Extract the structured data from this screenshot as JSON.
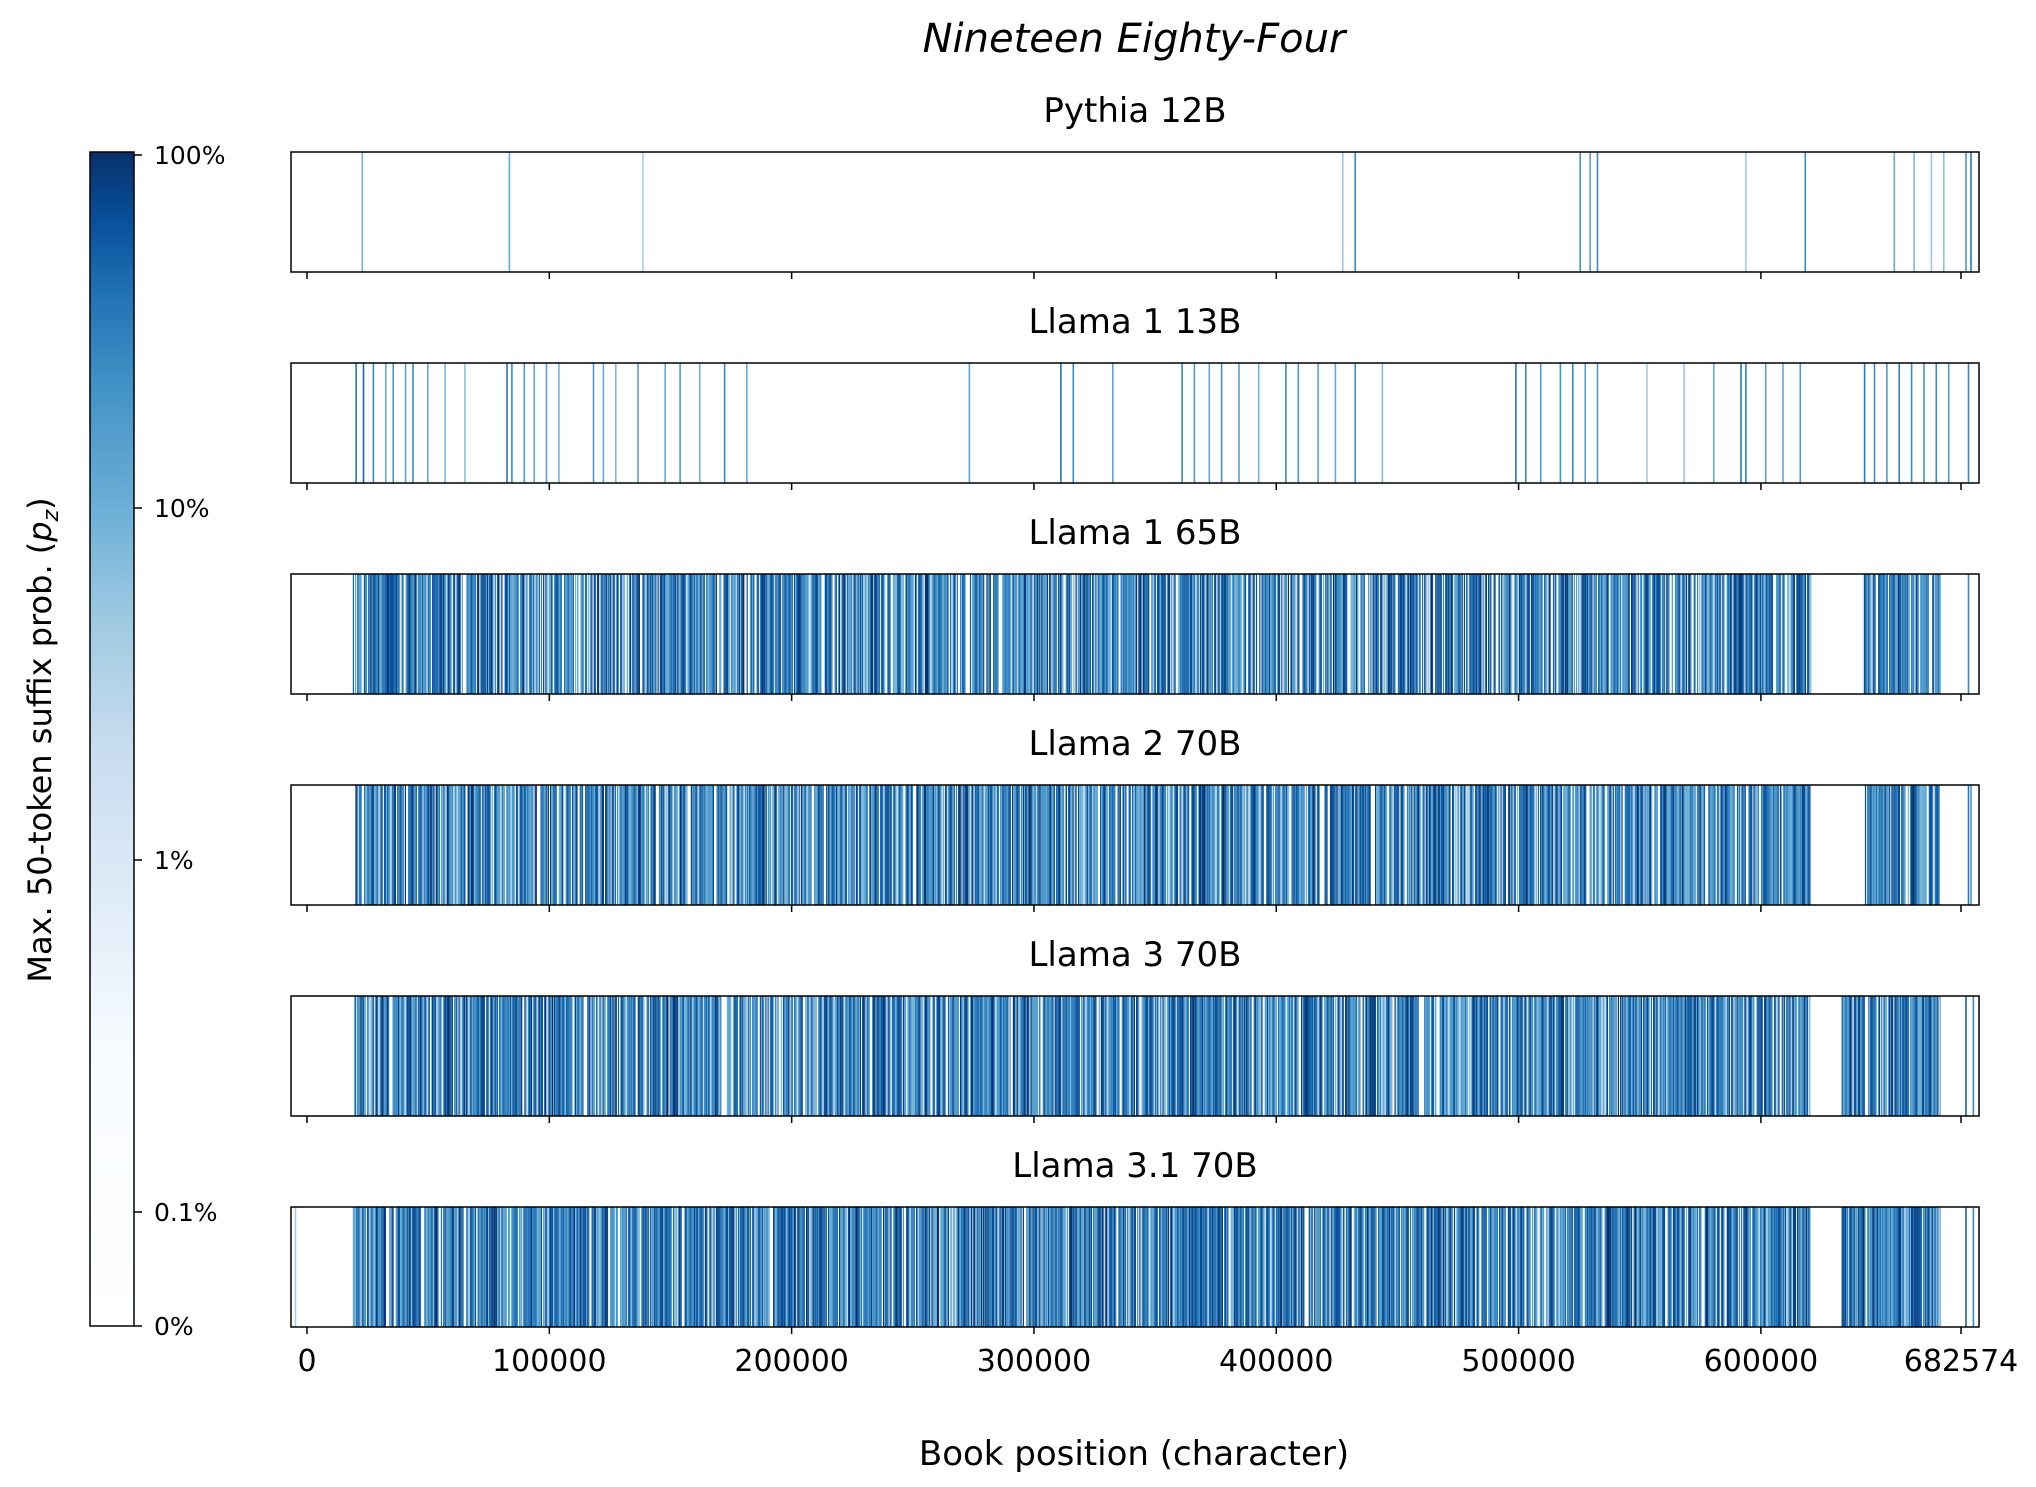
{
  "figure_title": "Nineteen Eighty-Four",
  "xlabel": "Book position (character)",
  "colorbar": {
    "label": "Max. 50-token suffix prob. (",
    "label_symbol": "p",
    "label_subscript": "z",
    "label_close": ")",
    "colormap": "Blues",
    "scale": "log",
    "ticks": [
      "0%",
      "0.1%",
      "1%",
      "10%",
      "100%"
    ]
  },
  "colors": {
    "low": "#f7fbff",
    "mid": "#6baed6",
    "high": "#08306b",
    "axis": "#000000"
  },
  "chart_data": [
    {
      "type": "heatmap",
      "title": "Pythia 12B",
      "xlim": [
        0,
        682574
      ],
      "xticks": [
        "0",
        "100000",
        "200000",
        "300000",
        "400000",
        "500000",
        "600000",
        "682574"
      ],
      "stripes": [
        [
          28500,
          0.25
        ],
        [
          88000,
          0.3
        ],
        [
          142000,
          0.03
        ],
        [
          425000,
          0.1
        ],
        [
          430000,
          0.5
        ],
        [
          521000,
          0.45
        ],
        [
          525000,
          0.35
        ],
        [
          528000,
          0.5
        ],
        [
          588000,
          0.05
        ],
        [
          612000,
          0.5
        ],
        [
          648000,
          0.3
        ],
        [
          656000,
          0.2
        ],
        [
          663000,
          0.1
        ],
        [
          668000,
          0.15
        ],
        [
          677000,
          0.4
        ],
        [
          679000,
          0.6
        ]
      ]
    },
    {
      "type": "heatmap",
      "title": "Llama 1 13B",
      "xlim": [
        0,
        682574
      ],
      "xticks": [
        "0",
        "100000",
        "200000",
        "300000",
        "400000",
        "500000",
        "600000",
        "682574"
      ],
      "stripes": [
        [
          26000,
          0.6
        ],
        [
          29000,
          0.7
        ],
        [
          33000,
          0.5
        ],
        [
          38000,
          0.3
        ],
        [
          41000,
          0.4
        ],
        [
          46000,
          0.35
        ],
        [
          49000,
          0.5
        ],
        [
          55000,
          0.3
        ],
        [
          62000,
          0.2
        ],
        [
          70000,
          0.15
        ],
        [
          87000,
          0.6
        ],
        [
          89000,
          0.5
        ],
        [
          94000,
          0.4
        ],
        [
          98000,
          0.3
        ],
        [
          103000,
          0.35
        ],
        [
          108000,
          0.25
        ],
        [
          122000,
          0.4
        ],
        [
          126000,
          0.3
        ],
        [
          131000,
          0.2
        ],
        [
          140000,
          0.35
        ],
        [
          151000,
          0.3
        ],
        [
          157000,
          0.4
        ],
        [
          165000,
          0.25
        ],
        [
          175000,
          0.5
        ],
        [
          184000,
          0.3
        ],
        [
          274000,
          0.35
        ],
        [
          311000,
          0.6
        ],
        [
          316000,
          0.5
        ],
        [
          332000,
          0.35
        ],
        [
          360000,
          0.5
        ],
        [
          365000,
          0.4
        ],
        [
          371000,
          0.3
        ],
        [
          376000,
          0.45
        ],
        [
          383000,
          0.35
        ],
        [
          391000,
          0.25
        ],
        [
          402000,
          0.5
        ],
        [
          407000,
          0.4
        ],
        [
          415000,
          0.35
        ],
        [
          422000,
          0.3
        ],
        [
          430000,
          0.45
        ],
        [
          441000,
          0.2
        ],
        [
          495000,
          0.6
        ],
        [
          499000,
          0.5
        ],
        [
          505000,
          0.4
        ],
        [
          513000,
          0.45
        ],
        [
          518000,
          0.5
        ],
        [
          523000,
          0.35
        ],
        [
          528000,
          0.4
        ],
        [
          548000,
          0.05
        ],
        [
          563000,
          0.1
        ],
        [
          575000,
          0.3
        ],
        [
          586000,
          0.6
        ],
        [
          588000,
          0.55
        ],
        [
          596000,
          0.35
        ],
        [
          603000,
          0.3
        ],
        [
          610000,
          0.4
        ],
        [
          636000,
          0.6
        ],
        [
          640000,
          0.5
        ],
        [
          645000,
          0.4
        ],
        [
          650000,
          0.55
        ],
        [
          655000,
          0.5
        ],
        [
          660000,
          0.45
        ],
        [
          665000,
          0.5
        ],
        [
          670000,
          0.4
        ],
        [
          678000,
          0.5
        ]
      ]
    },
    {
      "type": "heatmap",
      "title": "Llama 1 65B",
      "xlim": [
        0,
        682574
      ],
      "xticks": [
        "0",
        "100000",
        "200000",
        "300000",
        "400000",
        "500000",
        "600000",
        "682574"
      ],
      "bands": [
        [
          25000,
          614000,
          0.75
        ],
        [
          636000,
          667000,
          0.8
        ]
      ],
      "stripes": [
        [
          678000,
          0.5
        ]
      ]
    },
    {
      "type": "heatmap",
      "title": "Llama 2 70B",
      "xlim": [
        0,
        682574
      ],
      "xticks": [
        "0",
        "100000",
        "200000",
        "300000",
        "400000",
        "500000",
        "600000",
        "682574"
      ],
      "bands": [
        [
          26000,
          614000,
          0.78
        ],
        [
          636000,
          667000,
          0.82
        ]
      ],
      "stripes": [
        [
          678000,
          0.6
        ],
        [
          679000,
          0.4
        ]
      ]
    },
    {
      "type": "heatmap",
      "title": "Llama 3 70B",
      "xlim": [
        0,
        682574
      ],
      "xticks": [
        "0",
        "100000",
        "200000",
        "300000",
        "400000",
        "500000",
        "600000",
        "682574"
      ],
      "bands": [
        [
          25000,
          614000,
          0.8
        ],
        [
          627000,
          667000,
          0.85
        ]
      ],
      "stripes": [
        [
          677000,
          0.7
        ],
        [
          680000,
          0.5
        ]
      ]
    },
    {
      "type": "heatmap",
      "title": "Llama 3.1 70B",
      "xlim": [
        0,
        682574
      ],
      "xticks": [
        "0",
        "100000",
        "200000",
        "300000",
        "400000",
        "500000",
        "600000",
        "682574"
      ],
      "bands": [
        [
          25000,
          614000,
          0.82
        ],
        [
          627000,
          667000,
          0.86
        ]
      ],
      "stripes": [
        [
          1500,
          0.05
        ],
        [
          677000,
          0.7
        ],
        [
          680000,
          0.5
        ]
      ]
    }
  ]
}
